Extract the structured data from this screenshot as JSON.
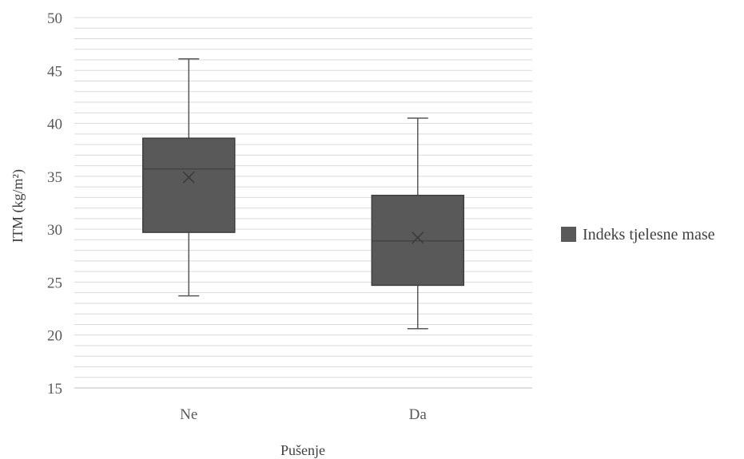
{
  "chart_data": {
    "type": "box",
    "xlabel": "Pušenje",
    "ylabel": "ITM (kg/m²)",
    "ylim": [
      15,
      50
    ],
    "y_ticks": [
      15,
      20,
      25,
      30,
      35,
      40,
      45,
      50
    ],
    "minor_grid_step": 1,
    "grid": true,
    "legend_position": "right",
    "series": [
      {
        "name": "Indeks tjelesne mase",
        "color": "#595959",
        "boxes": [
          {
            "category": "Ne",
            "min": 23.7,
            "q1": 29.7,
            "median": 35.7,
            "q3": 38.6,
            "max": 46.1,
            "mean": 34.9
          },
          {
            "category": "Da",
            "min": 20.6,
            "q1": 24.7,
            "median": 28.9,
            "q3": 33.2,
            "max": 40.5,
            "mean": 29.2
          }
        ]
      }
    ]
  }
}
